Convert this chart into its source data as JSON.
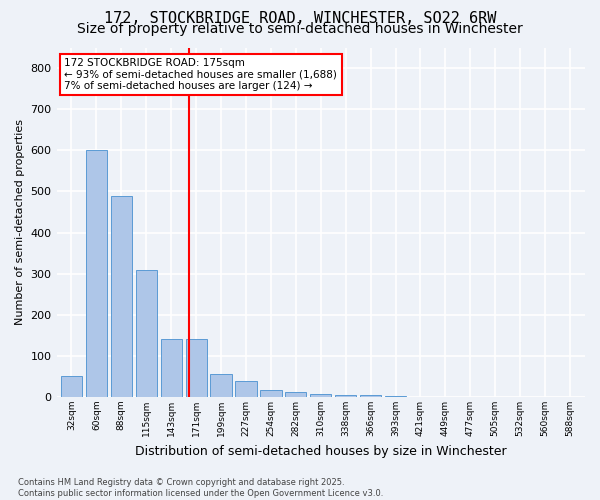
{
  "title1": "172, STOCKBRIDGE ROAD, WINCHESTER, SO22 6RW",
  "title2": "Size of property relative to semi-detached houses in Winchester",
  "xlabel": "Distribution of semi-detached houses by size in Winchester",
  "ylabel": "Number of semi-detached properties",
  "bins": [
    "32sqm",
    "60sqm",
    "88sqm",
    "115sqm",
    "143sqm",
    "171sqm",
    "199sqm",
    "227sqm",
    "254sqm",
    "282sqm",
    "310sqm",
    "338sqm",
    "366sqm",
    "393sqm",
    "421sqm",
    "449sqm",
    "477sqm",
    "505sqm",
    "532sqm",
    "560sqm",
    "588sqm"
  ],
  "values": [
    50,
    600,
    490,
    310,
    140,
    140,
    55,
    40,
    18,
    12,
    8,
    5,
    5,
    3,
    0,
    0,
    0,
    0,
    0,
    0,
    0
  ],
  "bar_color": "#aec6e8",
  "bar_edge_color": "#5b9bd5",
  "vline_x": 4.72,
  "vline_color": "red",
  "annotation_text": "172 STOCKBRIDGE ROAD: 175sqm\n← 93% of semi-detached houses are smaller (1,688)\n7% of semi-detached houses are larger (124) →",
  "annotation_box_color": "white",
  "annotation_box_edge": "red",
  "ylim": [
    0,
    850
  ],
  "yticks": [
    0,
    100,
    200,
    300,
    400,
    500,
    600,
    700,
    800
  ],
  "footer": "Contains HM Land Registry data © Crown copyright and database right 2025.\nContains public sector information licensed under the Open Government Licence v3.0.",
  "bg_color": "#eef2f8",
  "grid_color": "white",
  "title1_fontsize": 11,
  "title2_fontsize": 10
}
